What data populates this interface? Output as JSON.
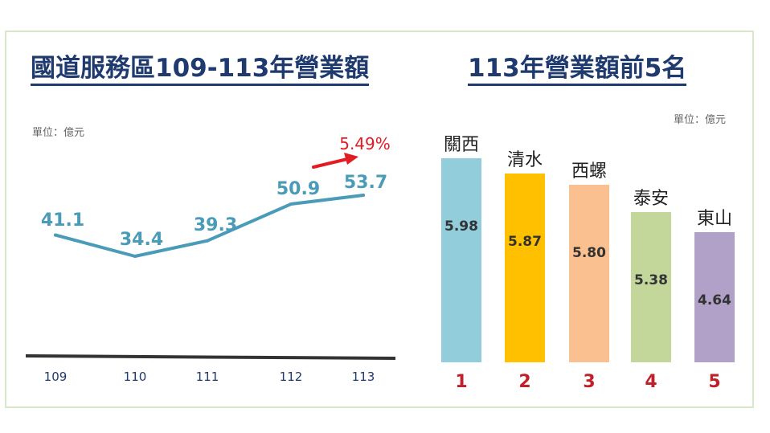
{
  "left": {
    "title": "國道服務區109-113年營業額",
    "unit": "單位：億元",
    "growth_label": "5.49%"
  },
  "right": {
    "title": "113年營業額前5名",
    "unit": "單位：億元"
  },
  "colors": {
    "title": "#1f3a6e",
    "line": "#4a9bb8",
    "axis": "#333333",
    "growth": "#e31b23",
    "rank": "#c0202a"
  },
  "chart_data": [
    {
      "type": "line",
      "title": "國道服務區109-113年營業額",
      "categories": [
        "109",
        "110",
        "111",
        "112",
        "113"
      ],
      "series": [
        {
          "values": [
            41.1,
            34.4,
            39.3,
            50.9,
            53.7
          ]
        }
      ],
      "value_labels": [
        "41.1",
        "34.4",
        "39.3",
        "50.9",
        "53.7"
      ],
      "annotation": "5.49%"
    },
    {
      "type": "bar",
      "title": "113年營業額前5名",
      "categories": [
        "關西",
        "清水",
        "西螺",
        "泰安",
        "東山"
      ],
      "values": [
        5.98,
        5.87,
        5.8,
        5.38,
        4.64
      ],
      "value_labels": [
        "5.98",
        "5.87",
        "5.80",
        "5.38",
        "4.64"
      ],
      "ranks": [
        "1",
        "2",
        "3",
        "4",
        "5"
      ],
      "bar_colors": [
        "#92cddc",
        "#ffc000",
        "#fac090",
        "#c4d79b",
        "#b1a0c7"
      ]
    }
  ]
}
